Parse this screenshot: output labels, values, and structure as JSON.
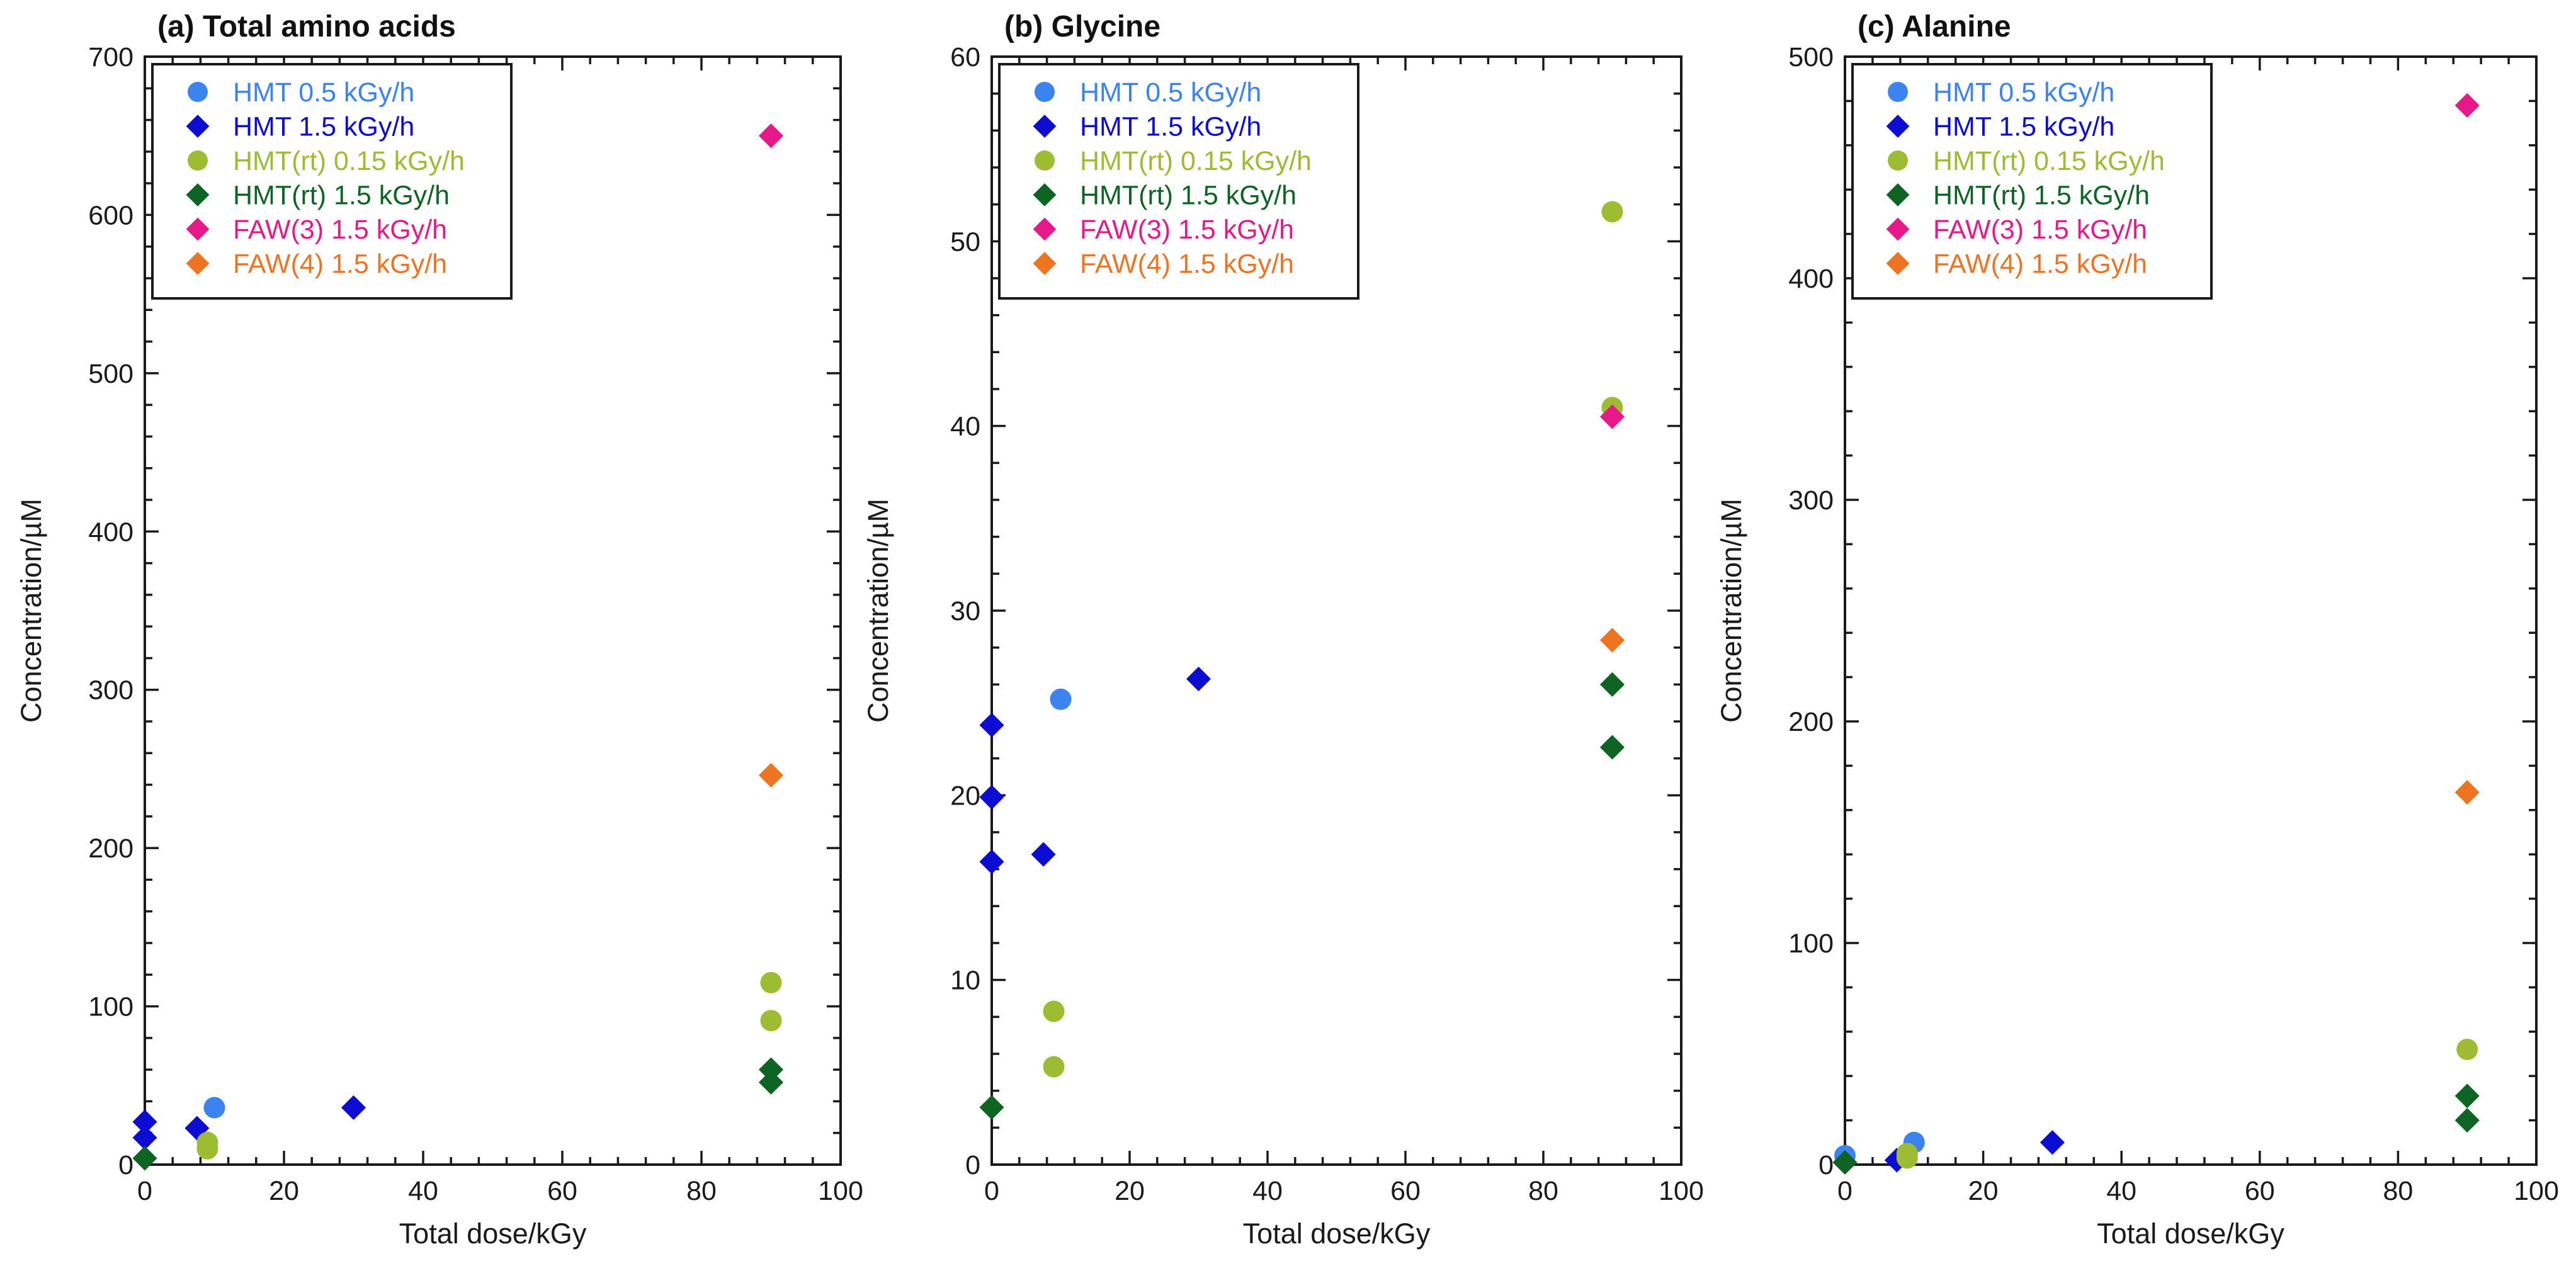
{
  "chart_data": [
    {
      "type": "scatter",
      "title": "(a) Total amino acids",
      "xlabel": "Total dose/kGy",
      "ylabel": "Concentration/µM",
      "xlim": [
        0,
        100
      ],
      "ylim": [
        0,
        700
      ],
      "xticks": [
        0,
        20,
        40,
        60,
        80,
        100
      ],
      "yticks": [
        0,
        100,
        200,
        300,
        400,
        500,
        600,
        700
      ],
      "xticks_minor": 5,
      "yticks_minor": 5,
      "legend_position": "top-left",
      "series": [
        {
          "name": "HMT 0.5 kGy/h",
          "marker": "circle",
          "color": "#3b83ee",
          "points": [
            [
              10,
              36
            ]
          ]
        },
        {
          "name": "HMT 1.5 kGy/h",
          "marker": "diamond",
          "color": "#0c0cd2",
          "points": [
            [
              0,
              27
            ],
            [
              0,
              17
            ],
            [
              7.5,
              23
            ],
            [
              30,
              36
            ]
          ]
        },
        {
          "name": "HMT(rt) 0.15 kGy/h",
          "marker": "circle",
          "color": "#9dbc32",
          "points": [
            [
              9,
              14
            ],
            [
              9,
              10
            ],
            [
              90,
              115
            ],
            [
              90,
              91
            ]
          ]
        },
        {
          "name": "HMT(rt) 1.5 kGy/h",
          "marker": "diamond",
          "color": "#0e6523",
          "points": [
            [
              0,
              4
            ],
            [
              90,
              60
            ],
            [
              90,
              52
            ]
          ]
        },
        {
          "name": "FAW(3) 1.5 kGy/h",
          "marker": "diamond",
          "color": "#e6188a",
          "points": [
            [
              90,
              650
            ]
          ]
        },
        {
          "name": "FAW(4) 1.5 kGy/h",
          "marker": "diamond",
          "color": "#ee7422",
          "points": [
            [
              90,
              246
            ]
          ]
        }
      ]
    },
    {
      "type": "scatter",
      "title": "(b) Glycine",
      "xlabel": "Total dose/kGy",
      "ylabel": "Concentration/µM",
      "xlim": [
        0,
        100
      ],
      "ylim": [
        0,
        60
      ],
      "xticks": [
        0,
        20,
        40,
        60,
        80,
        100
      ],
      "yticks": [
        0,
        10,
        20,
        30,
        40,
        50,
        60
      ],
      "xticks_minor": 5,
      "yticks_minor": 5,
      "legend_position": "top-left",
      "series": [
        {
          "name": "HMT 0.5 kGy/h",
          "marker": "circle",
          "color": "#3b83ee",
          "points": [
            [
              10,
              25.2
            ]
          ]
        },
        {
          "name": "HMT 1.5 kGy/h",
          "marker": "diamond",
          "color": "#0c0cd2",
          "points": [
            [
              0,
              23.8
            ],
            [
              0,
              19.9
            ],
            [
              0,
              16.4
            ],
            [
              7.5,
              16.8
            ],
            [
              30,
              26.3
            ]
          ]
        },
        {
          "name": "HMT(rt) 0.15 kGy/h",
          "marker": "circle",
          "color": "#9dbc32",
          "points": [
            [
              9,
              8.3
            ],
            [
              9,
              5.3
            ],
            [
              90,
              51.6
            ],
            [
              90,
              41
            ]
          ]
        },
        {
          "name": "HMT(rt) 1.5 kGy/h",
          "marker": "diamond",
          "color": "#0e6523",
          "points": [
            [
              0,
              3.1
            ],
            [
              90,
              26
            ],
            [
              90,
              22.6
            ]
          ]
        },
        {
          "name": "FAW(3) 1.5 kGy/h",
          "marker": "diamond",
          "color": "#e6188a",
          "points": [
            [
              90,
              40.5
            ]
          ]
        },
        {
          "name": "FAW(4) 1.5 kGy/h",
          "marker": "diamond",
          "color": "#ee7422",
          "points": [
            [
              90,
              28.4
            ]
          ]
        }
      ]
    },
    {
      "type": "scatter",
      "title": "(c) Alanine",
      "xlabel": "Total dose/kGy",
      "ylabel": "Concentration/µM",
      "xlim": [
        0,
        100
      ],
      "ylim": [
        0,
        500
      ],
      "xticks": [
        0,
        20,
        40,
        60,
        80,
        100
      ],
      "yticks": [
        0,
        100,
        200,
        300,
        400,
        500
      ],
      "xticks_minor": 5,
      "yticks_minor": 5,
      "legend_position": "top-left",
      "series": [
        {
          "name": "HMT 0.5 kGy/h",
          "marker": "circle",
          "color": "#3b83ee",
          "points": [
            [
              10,
              10
            ],
            [
              0,
              4
            ]
          ]
        },
        {
          "name": "HMT 1.5 kGy/h",
          "marker": "diamond",
          "color": "#0c0cd2",
          "points": [
            [
              7.5,
              2
            ],
            [
              30,
              10
            ]
          ]
        },
        {
          "name": "HMT(rt) 0.15 kGy/h",
          "marker": "circle",
          "color": "#9dbc32",
          "points": [
            [
              9,
              5
            ],
            [
              9,
              3
            ],
            [
              90,
              52
            ]
          ]
        },
        {
          "name": "HMT(rt) 1.5 kGy/h",
          "marker": "diamond",
          "color": "#0e6523",
          "points": [
            [
              0,
              1
            ],
            [
              90,
              31
            ],
            [
              90,
              20
            ]
          ]
        },
        {
          "name": "FAW(3) 1.5 kGy/h",
          "marker": "diamond",
          "color": "#e6188a",
          "points": [
            [
              90,
              478
            ]
          ]
        },
        {
          "name": "FAW(4) 1.5 kGy/h",
          "marker": "diamond",
          "color": "#ee7422",
          "points": [
            [
              90,
              168
            ]
          ]
        }
      ]
    }
  ]
}
